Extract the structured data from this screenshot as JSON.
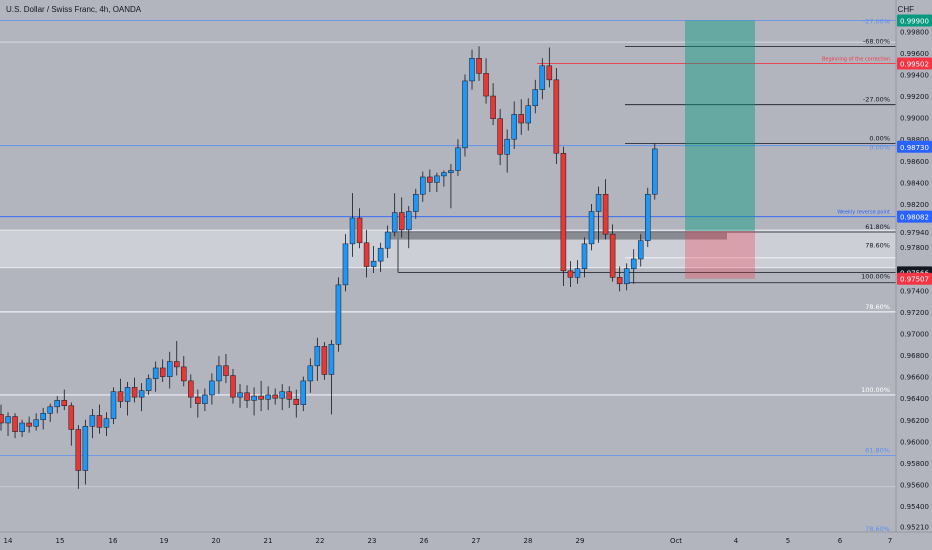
{
  "header": {
    "title": "U.S. Dollar / Swiss Franc, 4h, OANDA",
    "currency": "CHF"
  },
  "chart_data": {
    "type": "candlestick",
    "title": "U.S. Dollar / Swiss Franc, 4h, OANDA",
    "ylim": [
      0.9516,
      1.0009
    ],
    "y_ticks": [
      "0.99800",
      "0.99600",
      "0.99400",
      "0.99200",
      "0.99000",
      "0.98800",
      "0.98600",
      "0.98400",
      "0.98200",
      "0.97800",
      "0.97600",
      "0.97400",
      "0.97200",
      "0.97000",
      "0.96800",
      "0.96600",
      "0.96400",
      "0.96200",
      "0.96000",
      "0.95800",
      "0.95600",
      "0.95400",
      "0.95210"
    ],
    "x_ticks": [
      "14",
      "15",
      "16",
      "19",
      "20",
      "21",
      "22",
      "23",
      "26",
      "27",
      "28",
      "29",
      "Oct",
      "4",
      "5",
      "6",
      "7"
    ],
    "price_badges": [
      {
        "label": "0.99900",
        "color": "#089981",
        "text": "#ffffff"
      },
      {
        "label": "0.99502",
        "color": "#f23645",
        "text": "#ffffff"
      },
      {
        "label": "0.98730",
        "color": "#2962ff",
        "text": "#ffffff"
      },
      {
        "label": "0.98082",
        "color": "#2962ff",
        "text": "#ffffff"
      },
      {
        "label": "0.97940",
        "color": "#b2b5be",
        "text": "#131722"
      },
      {
        "label": "0.97566",
        "color": "#131722",
        "text": "#ffffff"
      },
      {
        "label": "0.97507",
        "color": "#f23645",
        "text": "#ffffff"
      }
    ],
    "annotations": [
      "-27.00%",
      "-68.00%",
      "Beginning of the correction",
      "-27.00%",
      "0.00%",
      "0.00%",
      "Weekly reverse point",
      "61.80%",
      "78.60%",
      "100.00%",
      "78.60%",
      "100.00%",
      "61.80%",
      "78.60%"
    ],
    "candles": [
      {
        "o": 0.9625,
        "h": 0.9634,
        "l": 0.961,
        "c": 0.9617
      },
      {
        "o": 0.9617,
        "h": 0.9627,
        "l": 0.9605,
        "c": 0.9623
      },
      {
        "o": 0.9623,
        "h": 0.9626,
        "l": 0.9603,
        "c": 0.9609
      },
      {
        "o": 0.9609,
        "h": 0.962,
        "l": 0.9604,
        "c": 0.9617
      },
      {
        "o": 0.9617,
        "h": 0.9623,
        "l": 0.9608,
        "c": 0.9614
      },
      {
        "o": 0.9614,
        "h": 0.9626,
        "l": 0.961,
        "c": 0.962
      },
      {
        "o": 0.962,
        "h": 0.9631,
        "l": 0.9611,
        "c": 0.9626
      },
      {
        "o": 0.9626,
        "h": 0.9635,
        "l": 0.9618,
        "c": 0.9632
      },
      {
        "o": 0.9632,
        "h": 0.9642,
        "l": 0.9626,
        "c": 0.9638
      },
      {
        "o": 0.9638,
        "h": 0.9648,
        "l": 0.9629,
        "c": 0.9633
      },
      {
        "o": 0.9633,
        "h": 0.9636,
        "l": 0.9596,
        "c": 0.9611
      },
      {
        "o": 0.9611,
        "h": 0.9615,
        "l": 0.9556,
        "c": 0.9573
      },
      {
        "o": 0.9573,
        "h": 0.962,
        "l": 0.956,
        "c": 0.9614
      },
      {
        "o": 0.9614,
        "h": 0.963,
        "l": 0.9603,
        "c": 0.9624
      },
      {
        "o": 0.9624,
        "h": 0.9634,
        "l": 0.9607,
        "c": 0.9613
      },
      {
        "o": 0.9613,
        "h": 0.9627,
        "l": 0.9605,
        "c": 0.9621
      },
      {
        "o": 0.9621,
        "h": 0.965,
        "l": 0.9616,
        "c": 0.9646
      },
      {
        "o": 0.9646,
        "h": 0.9658,
        "l": 0.9631,
        "c": 0.9637
      },
      {
        "o": 0.9637,
        "h": 0.9655,
        "l": 0.9624,
        "c": 0.965
      },
      {
        "o": 0.965,
        "h": 0.9659,
        "l": 0.9636,
        "c": 0.9641
      },
      {
        "o": 0.9641,
        "h": 0.9654,
        "l": 0.9628,
        "c": 0.9647
      },
      {
        "o": 0.9647,
        "h": 0.9662,
        "l": 0.9643,
        "c": 0.9658
      },
      {
        "o": 0.9658,
        "h": 0.9674,
        "l": 0.9646,
        "c": 0.9668
      },
      {
        "o": 0.9668,
        "h": 0.9676,
        "l": 0.9655,
        "c": 0.966
      },
      {
        "o": 0.966,
        "h": 0.9683,
        "l": 0.9649,
        "c": 0.9674
      },
      {
        "o": 0.9674,
        "h": 0.9693,
        "l": 0.9661,
        "c": 0.9669
      },
      {
        "o": 0.9669,
        "h": 0.9679,
        "l": 0.9651,
        "c": 0.9656
      },
      {
        "o": 0.9656,
        "h": 0.9662,
        "l": 0.9631,
        "c": 0.9641
      },
      {
        "o": 0.9641,
        "h": 0.9648,
        "l": 0.9622,
        "c": 0.9635
      },
      {
        "o": 0.9635,
        "h": 0.9649,
        "l": 0.9628,
        "c": 0.9643
      },
      {
        "o": 0.9643,
        "h": 0.9663,
        "l": 0.9634,
        "c": 0.9656
      },
      {
        "o": 0.9656,
        "h": 0.9679,
        "l": 0.9644,
        "c": 0.967
      },
      {
        "o": 0.967,
        "h": 0.9681,
        "l": 0.9654,
        "c": 0.9661
      },
      {
        "o": 0.9661,
        "h": 0.9667,
        "l": 0.9635,
        "c": 0.9641
      },
      {
        "o": 0.9641,
        "h": 0.9653,
        "l": 0.9631,
        "c": 0.9645
      },
      {
        "o": 0.9645,
        "h": 0.9652,
        "l": 0.9631,
        "c": 0.9638
      },
      {
        "o": 0.9638,
        "h": 0.965,
        "l": 0.9624,
        "c": 0.9642
      },
      {
        "o": 0.9642,
        "h": 0.9656,
        "l": 0.9628,
        "c": 0.9639
      },
      {
        "o": 0.9639,
        "h": 0.9651,
        "l": 0.9629,
        "c": 0.9643
      },
      {
        "o": 0.9643,
        "h": 0.9649,
        "l": 0.9634,
        "c": 0.964
      },
      {
        "o": 0.964,
        "h": 0.9653,
        "l": 0.9629,
        "c": 0.9646
      },
      {
        "o": 0.9646,
        "h": 0.9651,
        "l": 0.9631,
        "c": 0.9639
      },
      {
        "o": 0.9639,
        "h": 0.9648,
        "l": 0.9622,
        "c": 0.9634
      },
      {
        "o": 0.9634,
        "h": 0.966,
        "l": 0.9628,
        "c": 0.9656
      },
      {
        "o": 0.9656,
        "h": 0.9677,
        "l": 0.9645,
        "c": 0.967
      },
      {
        "o": 0.967,
        "h": 0.9696,
        "l": 0.9656,
        "c": 0.9688
      },
      {
        "o": 0.9688,
        "h": 0.9692,
        "l": 0.9657,
        "c": 0.9662
      },
      {
        "o": 0.9662,
        "h": 0.9694,
        "l": 0.9625,
        "c": 0.969
      },
      {
        "o": 0.969,
        "h": 0.9752,
        "l": 0.9683,
        "c": 0.9745
      },
      {
        "o": 0.9745,
        "h": 0.9792,
        "l": 0.9739,
        "c": 0.9783
      },
      {
        "o": 0.9783,
        "h": 0.983,
        "l": 0.9771,
        "c": 0.9807
      },
      {
        "o": 0.9807,
        "h": 0.9816,
        "l": 0.9779,
        "c": 0.9784
      },
      {
        "o": 0.9784,
        "h": 0.9796,
        "l": 0.9752,
        "c": 0.9762
      },
      {
        "o": 0.9762,
        "h": 0.9781,
        "l": 0.9756,
        "c": 0.9767
      },
      {
        "o": 0.9767,
        "h": 0.9784,
        "l": 0.9757,
        "c": 0.9779
      },
      {
        "o": 0.9779,
        "h": 0.98,
        "l": 0.977,
        "c": 0.9794
      },
      {
        "o": 0.9794,
        "h": 0.983,
        "l": 0.979,
        "c": 0.9812
      },
      {
        "o": 0.9812,
        "h": 0.9826,
        "l": 0.9789,
        "c": 0.9796
      },
      {
        "o": 0.9796,
        "h": 0.9818,
        "l": 0.9779,
        "c": 0.9813
      },
      {
        "o": 0.9813,
        "h": 0.9834,
        "l": 0.9806,
        "c": 0.9829
      },
      {
        "o": 0.9829,
        "h": 0.985,
        "l": 0.9822,
        "c": 0.9845
      },
      {
        "o": 0.9845,
        "h": 0.9852,
        "l": 0.9831,
        "c": 0.984
      },
      {
        "o": 0.984,
        "h": 0.9849,
        "l": 0.9831,
        "c": 0.9846
      },
      {
        "o": 0.9846,
        "h": 0.9851,
        "l": 0.9836,
        "c": 0.9849
      },
      {
        "o": 0.9849,
        "h": 0.9857,
        "l": 0.9816,
        "c": 0.9851
      },
      {
        "o": 0.9851,
        "h": 0.988,
        "l": 0.9846,
        "c": 0.9872
      },
      {
        "o": 0.9872,
        "h": 0.994,
        "l": 0.9864,
        "c": 0.9934
      },
      {
        "o": 0.9934,
        "h": 0.9963,
        "l": 0.9926,
        "c": 0.9955
      },
      {
        "o": 0.9955,
        "h": 0.9966,
        "l": 0.9934,
        "c": 0.9941
      },
      {
        "o": 0.9941,
        "h": 0.9955,
        "l": 0.9913,
        "c": 0.992
      },
      {
        "o": 0.992,
        "h": 0.9932,
        "l": 0.9893,
        "c": 0.9899
      },
      {
        "o": 0.9899,
        "h": 0.9908,
        "l": 0.9856,
        "c": 0.9866
      },
      {
        "o": 0.9866,
        "h": 0.9889,
        "l": 0.9849,
        "c": 0.988
      },
      {
        "o": 0.988,
        "h": 0.9915,
        "l": 0.9871,
        "c": 0.9903
      },
      {
        "o": 0.9903,
        "h": 0.9917,
        "l": 0.9884,
        "c": 0.9895
      },
      {
        "o": 0.9895,
        "h": 0.9918,
        "l": 0.9888,
        "c": 0.9911
      },
      {
        "o": 0.9911,
        "h": 0.9935,
        "l": 0.9904,
        "c": 0.9926
      },
      {
        "o": 0.9926,
        "h": 0.9955,
        "l": 0.9917,
        "c": 0.9948
      },
      {
        "o": 0.9948,
        "h": 0.9965,
        "l": 0.9928,
        "c": 0.9935
      },
      {
        "o": 0.9935,
        "h": 0.9946,
        "l": 0.9857,
        "c": 0.9867
      },
      {
        "o": 0.9867,
        "h": 0.9873,
        "l": 0.9744,
        "c": 0.9758
      },
      {
        "o": 0.9758,
        "h": 0.9767,
        "l": 0.9743,
        "c": 0.9752
      },
      {
        "o": 0.9752,
        "h": 0.9768,
        "l": 0.9746,
        "c": 0.976
      },
      {
        "o": 0.976,
        "h": 0.9789,
        "l": 0.9752,
        "c": 0.9783
      },
      {
        "o": 0.9783,
        "h": 0.982,
        "l": 0.9777,
        "c": 0.9813
      },
      {
        "o": 0.9813,
        "h": 0.9836,
        "l": 0.9784,
        "c": 0.9829
      },
      {
        "o": 0.9829,
        "h": 0.9843,
        "l": 0.9787,
        "c": 0.9792
      },
      {
        "o": 0.9792,
        "h": 0.9801,
        "l": 0.9748,
        "c": 0.9752
      },
      {
        "o": 0.9752,
        "h": 0.9762,
        "l": 0.9739,
        "c": 0.9746
      },
      {
        "o": 0.9746,
        "h": 0.9765,
        "l": 0.974,
        "c": 0.976
      },
      {
        "o": 0.976,
        "h": 0.9778,
        "l": 0.9746,
        "c": 0.9769
      },
      {
        "o": 0.9769,
        "h": 0.9792,
        "l": 0.9762,
        "c": 0.9786
      },
      {
        "o": 0.9786,
        "h": 0.9835,
        "l": 0.978,
        "c": 0.9829
      },
      {
        "o": 0.9829,
        "h": 0.9876,
        "l": 0.9824,
        "c": 0.9871
      }
    ],
    "levels": [
      {
        "y": 0.999,
        "color": "#5b8ef0",
        "w": 0.8
      },
      {
        "y": 0.997,
        "color": "#dfe1e6",
        "w": 0.8
      },
      {
        "y": 0.9874,
        "color": "#5b8ef0",
        "w": 0.8
      },
      {
        "y": 0.98082,
        "color": "#2962ff",
        "w": 0.8
      },
      {
        "y": 0.972,
        "color": "#eef0f4",
        "w": 1.2
      },
      {
        "y": 0.9643,
        "color": "#eef0f4",
        "w": 1.2
      },
      {
        "y": 0.9587,
        "color": "#5b8ef0",
        "w": 0.8
      },
      {
        "y": 0.9558,
        "color": "#c8cbd2",
        "w": 0.8
      }
    ],
    "zone": {
      "y1": 0.97956,
      "y2": 0.9761
    },
    "position": {
      "entry": 0.9795,
      "target": 0.999,
      "stop": 0.97507,
      "t1": 4.0,
      "t2": 4.3
    }
  }
}
